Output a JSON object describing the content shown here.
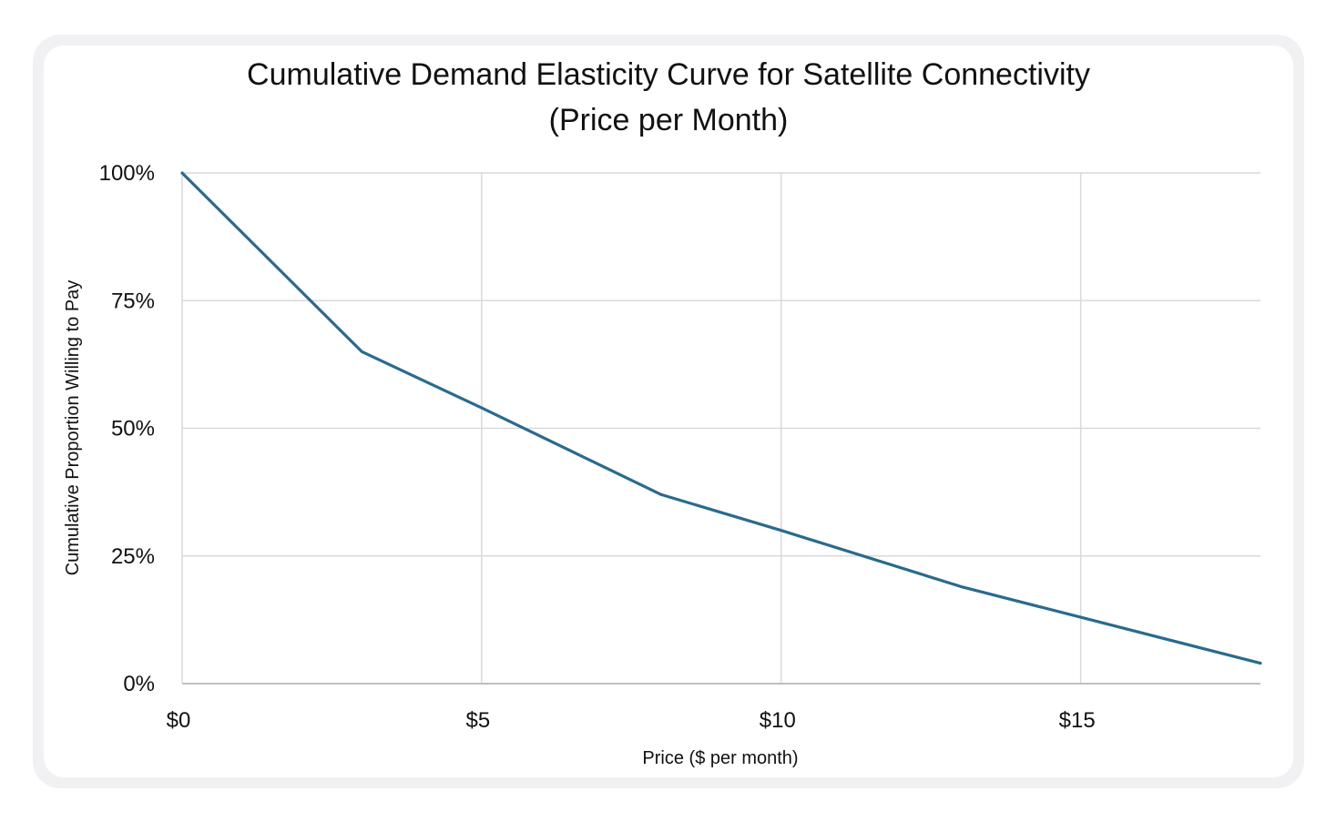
{
  "chart_data": {
    "type": "line",
    "title_lines": [
      "Cumulative Demand Elasticity Curve for Satellite Connectivity",
      "(Price per Month)"
    ],
    "xlabel": "Price ($ per month)",
    "ylabel": "Cumulative Proportion Willing to Pay",
    "x_ticks": [
      {
        "value": 0,
        "label": "$0"
      },
      {
        "value": 5,
        "label": "$5"
      },
      {
        "value": 10,
        "label": "$10"
      },
      {
        "value": 15,
        "label": "$15"
      }
    ],
    "y_ticks": [
      {
        "value": 0,
        "label": "0%"
      },
      {
        "value": 25,
        "label": "25%"
      },
      {
        "value": 50,
        "label": "50%"
      },
      {
        "value": 75,
        "label": "75%"
      },
      {
        "value": 100,
        "label": "100%"
      }
    ],
    "xlim": [
      0,
      18
    ],
    "ylim": [
      0,
      100
    ],
    "grid": true,
    "series": [
      {
        "x": [
          0,
          3,
          5,
          8,
          10,
          13,
          15,
          18
        ],
        "y": [
          100,
          65,
          54,
          37,
          30,
          19,
          13,
          4
        ],
        "color": "#2a6a8e"
      }
    ]
  }
}
